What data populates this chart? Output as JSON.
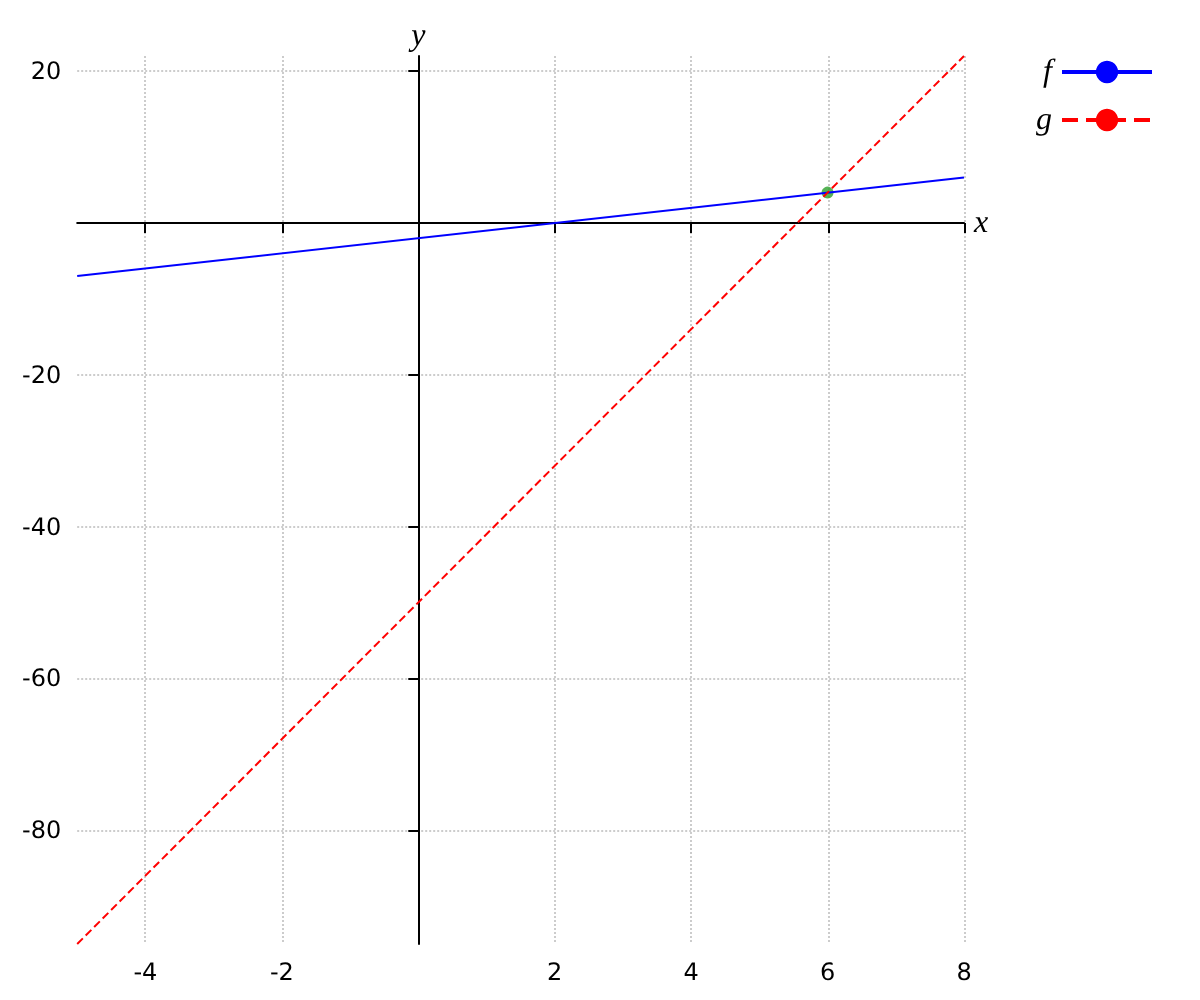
{
  "chart_data": {
    "type": "line",
    "xlabel": "x",
    "ylabel": "y",
    "xlim": [
      -5,
      8
    ],
    "ylim": [
      -95,
      22
    ],
    "xticks": [
      -4,
      -2,
      2,
      4,
      6,
      8
    ],
    "yticks": [
      -80,
      -60,
      -40,
      -20,
      20
    ],
    "grid": true,
    "legend": "top right",
    "series": [
      {
        "name": "f",
        "color": "#0000ff",
        "line_style": "solid",
        "marker": "none",
        "x": [
          -5,
          8
        ],
        "values": [
          -7,
          6
        ]
      },
      {
        "name": "g",
        "color": "#ff0000",
        "line_style": "dashed",
        "marker": "none",
        "x": [
          -5,
          8
        ],
        "values": [
          -95,
          22
        ]
      },
      {
        "type": "scatter",
        "color": "#2ca02c",
        "marker": "circle",
        "x": [
          6
        ],
        "values": [
          4
        ]
      }
    ]
  }
}
